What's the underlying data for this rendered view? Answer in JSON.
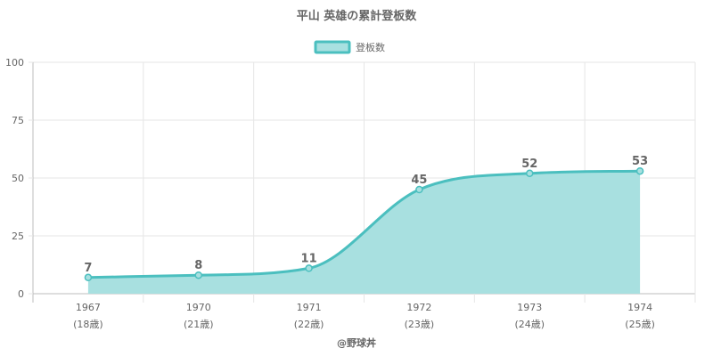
{
  "chart_data": {
    "type": "area",
    "title": "平山 英雄の累計登板数",
    "legend": {
      "label": "登板数",
      "position": "top"
    },
    "categories": [
      "1967",
      "1970",
      "1971",
      "1972",
      "1973",
      "1974"
    ],
    "category_sublabels": [
      "(18歳)",
      "(21歳)",
      "(22歳)",
      "(23歳)",
      "(24歳)",
      "(25歳)"
    ],
    "series": [
      {
        "name": "登板数",
        "values": [
          7,
          8,
          11,
          45,
          52,
          53
        ]
      }
    ],
    "ylim": [
      0,
      100
    ],
    "yticks": [
      0,
      25,
      50,
      75,
      100
    ],
    "grid": true,
    "colors": {
      "line": "#4bbfbf",
      "fill": "#a8e0e0",
      "grid": "#e6e6e6",
      "axis": "#bdbdbd"
    }
  },
  "footer": "@野球丼"
}
